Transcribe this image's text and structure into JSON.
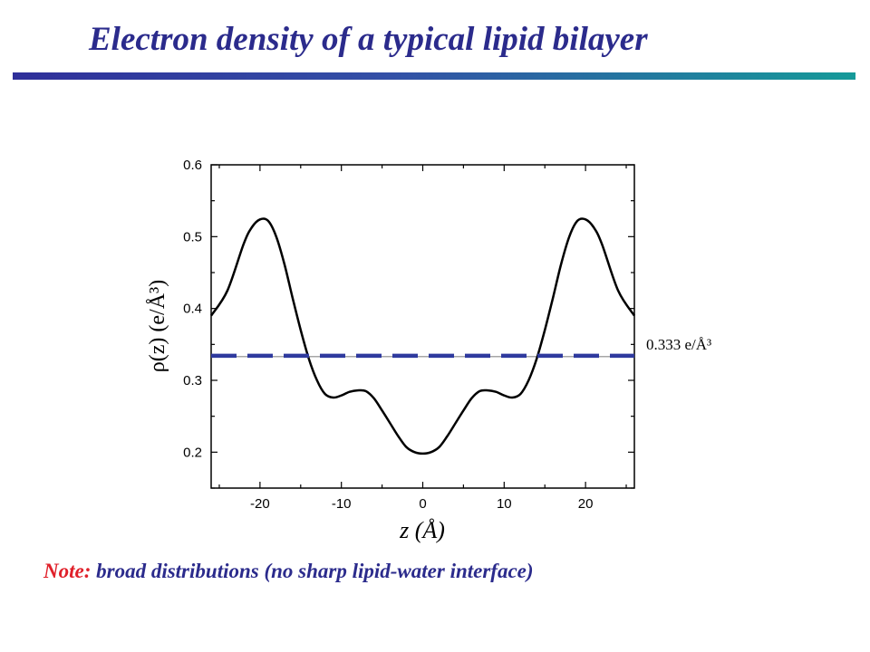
{
  "slide": {
    "title": "Electron density of a typical lipid bilayer",
    "note_label": "Note:",
    "note_text": "broad distributions (no sharp lipid-water interface)",
    "title_color": "#2b2b8c",
    "note_label_color": "#e0202a"
  },
  "chart_data": {
    "type": "line",
    "title": "",
    "xlabel": "z (Å)",
    "ylabel": "ρ(z) (e/Å³)",
    "xlim": [
      -26,
      26
    ],
    "ylim": [
      0.15,
      0.6
    ],
    "xticks": [
      -20,
      -10,
      0,
      10,
      20
    ],
    "yticks": [
      0.2,
      0.3,
      0.4,
      0.5,
      0.6
    ],
    "ytick_labels": [
      "0.2",
      "0.3",
      "0.4",
      "0.5",
      "0.6"
    ],
    "grid": false,
    "series": [
      {
        "line_color": "#000000",
        "x": [
          -26,
          -24,
          -22,
          -21,
          -20,
          -19,
          -18,
          -17,
          -16,
          -15,
          -14,
          -13,
          -12,
          -11,
          -10,
          -9,
          -8,
          -7,
          -6,
          -5,
          -4,
          -3,
          -2,
          -1,
          0,
          1,
          2,
          3,
          4,
          5,
          6,
          7,
          8,
          9,
          10,
          11,
          12,
          13,
          14,
          15,
          16,
          17,
          18,
          19,
          20,
          21,
          22,
          24,
          26
        ],
        "y": [
          0.39,
          0.425,
          0.49,
          0.513,
          0.524,
          0.522,
          0.5,
          0.462,
          0.415,
          0.37,
          0.33,
          0.3,
          0.281,
          0.276,
          0.279,
          0.284,
          0.286,
          0.285,
          0.275,
          0.258,
          0.24,
          0.222,
          0.207,
          0.2,
          0.198,
          0.2,
          0.207,
          0.222,
          0.24,
          0.258,
          0.275,
          0.285,
          0.286,
          0.284,
          0.279,
          0.276,
          0.281,
          0.3,
          0.33,
          0.37,
          0.415,
          0.462,
          0.5,
          0.522,
          0.524,
          0.513,
          0.49,
          0.425,
          0.39
        ]
      }
    ],
    "reference_line": {
      "y": 0.333,
      "label": "0.333 e/Å³",
      "color": "#2f3a9e",
      "style": "dashed"
    }
  }
}
